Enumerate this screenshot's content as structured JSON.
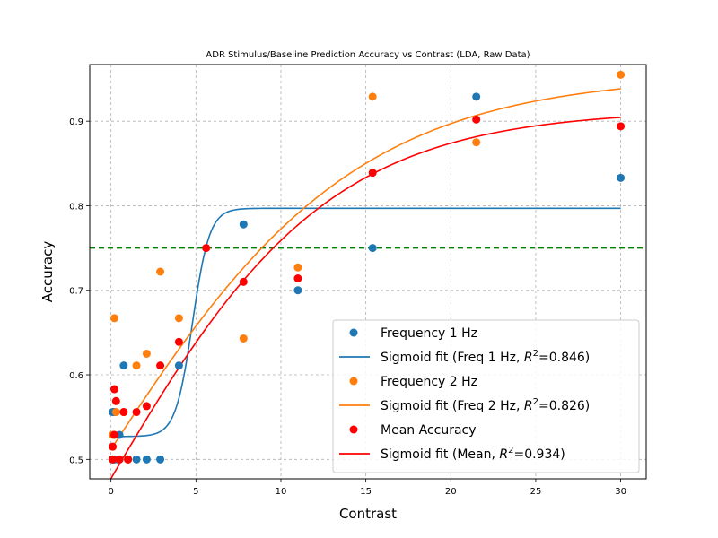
{
  "chart_data": {
    "type": "scatter",
    "title": "ADR Stimulus/Baseline Prediction Accuracy vs Contrast (LDA, Raw Data)",
    "xlabel": "Contrast",
    "ylabel": "Accuracy",
    "xlim": [
      -1.25,
      31.5
    ],
    "ylim": [
      0.477,
      0.967
    ],
    "xticks": [
      0,
      5,
      10,
      15,
      20,
      25,
      30
    ],
    "yticks": [
      0.5,
      0.6,
      0.7,
      0.8,
      0.9
    ],
    "ytick_labels": [
      "0.5",
      "0.6",
      "0.7",
      "0.8",
      "0.9"
    ],
    "grid": true,
    "legend_position": "lower-right",
    "reference_line": {
      "y": 0.75,
      "color": "#008000",
      "style": "dashed"
    },
    "series": [
      {
        "name": "Frequency 1 Hz",
        "kind": "scatter",
        "color": "#1f77b4",
        "x": [
          0.1,
          0.1,
          0.2,
          0.2,
          0.4,
          0.5,
          0.5,
          0.75,
          1.0,
          1.5,
          2.1,
          2.9,
          4.0,
          7.8,
          11.0,
          15.4,
          21.5,
          30.0
        ],
        "y": [
          0.5,
          0.556,
          0.5,
          0.556,
          0.5,
          0.529,
          0.5,
          0.611,
          0.5,
          0.5,
          0.5,
          0.5,
          0.611,
          0.778,
          0.7,
          0.75,
          0.929,
          0.833
        ]
      },
      {
        "name": "Sigmoid fit (Freq 1 Hz, R²=0.846)",
        "kind": "line",
        "color": "#1f77b4",
        "fit": {
          "L": 0.27,
          "k": 2.0,
          "x0": 4.8,
          "b": 0.527,
          "xmin": 0.0,
          "xmax": 30.0
        }
      },
      {
        "name": "Frequency 2 Hz",
        "kind": "scatter",
        "color": "#ff7f0e",
        "x": [
          0.1,
          0.2,
          0.3,
          0.5,
          0.75,
          1.0,
          1.5,
          2.1,
          2.9,
          4.0,
          7.8,
          11.0,
          15.4,
          21.5,
          30.0
        ],
        "y": [
          0.529,
          0.667,
          0.556,
          0.5,
          0.556,
          0.5,
          0.611,
          0.625,
          0.722,
          0.667,
          0.643,
          0.727,
          0.929,
          0.875,
          0.955
        ]
      },
      {
        "name": "Sigmoid fit (Freq 2 Hz, R²=0.826)",
        "kind": "line",
        "color": "#ff7f0e",
        "fit": {
          "L": 0.9548,
          "k": 0.13,
          "x0": -1.11,
          "b": 0.0,
          "xmin": 0.0,
          "xmax": 30.0
        }
      },
      {
        "name": "Mean Accuracy",
        "kind": "scatter",
        "color": "#ff0000",
        "x": [
          0.1,
          0.1,
          0.2,
          0.2,
          0.3,
          0.5,
          0.75,
          1.0,
          1.5,
          2.1,
          2.9,
          4.0,
          5.6,
          7.8,
          11.0,
          15.4,
          21.5,
          30.0
        ],
        "y": [
          0.515,
          0.5,
          0.583,
          0.529,
          0.569,
          0.5,
          0.556,
          0.5,
          0.556,
          0.563,
          0.611,
          0.639,
          0.75,
          0.71,
          0.714,
          0.839,
          0.902,
          0.894
        ]
      },
      {
        "name": "Sigmoid fit (Mean, R²=0.934)",
        "kind": "line",
        "color": "#ff0000",
        "fit": {
          "L": 0.9137,
          "k": 0.15,
          "x0": -0.6,
          "b": 0.0,
          "xmin": 0.0,
          "xmax": 30.0
        }
      }
    ],
    "legend": [
      {
        "label": "Frequency 1 Hz",
        "marker": "dot",
        "color": "#1f77b4"
      },
      {
        "label_prefix": "Sigmoid fit (Freq 1 Hz, ",
        "label_suffix": "=0.846)",
        "marker": "line",
        "color": "#1f77b4"
      },
      {
        "label": "Frequency 2 Hz",
        "marker": "dot",
        "color": "#ff7f0e"
      },
      {
        "label_prefix": "Sigmoid fit (Freq 2 Hz, ",
        "label_suffix": "=0.826)",
        "marker": "line",
        "color": "#ff7f0e"
      },
      {
        "label": "Mean Accuracy",
        "marker": "dot",
        "color": "#ff0000"
      },
      {
        "label_prefix": "Sigmoid fit (Mean, ",
        "label_suffix": "=0.934)",
        "marker": "line",
        "color": "#ff0000"
      }
    ]
  }
}
